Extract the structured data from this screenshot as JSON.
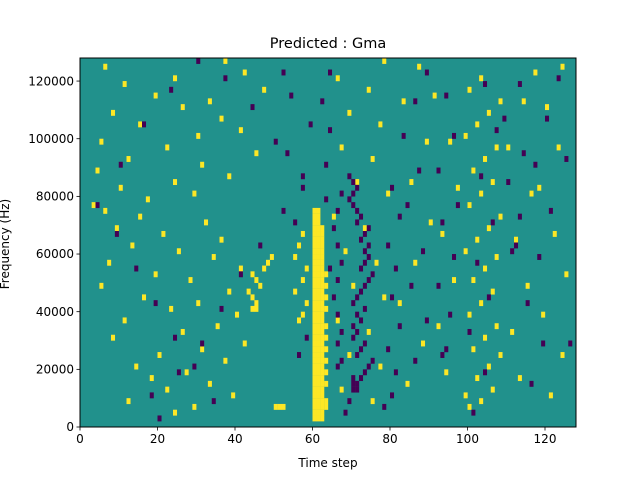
{
  "chart_data": {
    "type": "heatmap",
    "title": "Predicted : Gma",
    "xlabel": "Time step",
    "ylabel": "Frequency (Hz)",
    "xlim": [
      0,
      128
    ],
    "ylim": [
      0,
      128000
    ],
    "x_ticks": [
      0,
      20,
      40,
      60,
      80,
      100,
      120
    ],
    "y_ticks": [
      0,
      20000,
      40000,
      60000,
      80000,
      100000,
      120000
    ],
    "y_tick_labels": [
      "0",
      "20000",
      "40000",
      "60000",
      "80000",
      "100000",
      "120000"
    ],
    "grid": false,
    "legend": "none",
    "n_time_steps": 128,
    "n_frequency_bins": 64,
    "frequency_bin_width_hz": 2000,
    "levels": {
      "background": 0,
      "high": 1,
      "low": -1
    },
    "colors": {
      "background": "#21918c",
      "high": "#fde725",
      "low": "#440154"
    },
    "high_cells": [
      [
        60,
        1
      ],
      [
        61,
        1
      ],
      [
        62,
        1
      ],
      [
        60,
        2
      ],
      [
        61,
        2
      ],
      [
        62,
        2
      ],
      [
        50,
        3
      ],
      [
        51,
        3
      ],
      [
        52,
        3
      ],
      [
        60,
        3
      ],
      [
        61,
        3
      ],
      [
        62,
        3
      ],
      [
        63,
        3
      ],
      [
        60,
        4
      ],
      [
        61,
        4
      ],
      [
        62,
        4
      ],
      [
        63,
        4
      ],
      [
        60,
        5
      ],
      [
        61,
        5
      ],
      [
        62,
        5
      ],
      [
        60,
        6
      ],
      [
        61,
        6
      ],
      [
        62,
        6
      ],
      [
        60,
        7
      ],
      [
        61,
        7
      ],
      [
        62,
        7
      ],
      [
        63,
        7
      ],
      [
        60,
        8
      ],
      [
        61,
        8
      ],
      [
        62,
        8
      ],
      [
        60,
        9
      ],
      [
        61,
        9
      ],
      [
        62,
        9
      ],
      [
        63,
        9
      ],
      [
        60,
        10
      ],
      [
        61,
        10
      ],
      [
        62,
        10
      ],
      [
        60,
        11
      ],
      [
        61,
        11
      ],
      [
        62,
        11
      ],
      [
        63,
        11
      ],
      [
        60,
        12
      ],
      [
        61,
        12
      ],
      [
        62,
        12
      ],
      [
        60,
        13
      ],
      [
        61,
        13
      ],
      [
        62,
        13
      ],
      [
        63,
        13
      ],
      [
        60,
        14
      ],
      [
        61,
        14
      ],
      [
        62,
        14
      ],
      [
        60,
        15
      ],
      [
        61,
        15
      ],
      [
        62,
        15
      ],
      [
        63,
        15
      ],
      [
        60,
        16
      ],
      [
        61,
        16
      ],
      [
        62,
        16
      ],
      [
        60,
        17
      ],
      [
        61,
        17
      ],
      [
        62,
        17
      ],
      [
        63,
        17
      ],
      [
        60,
        18
      ],
      [
        61,
        18
      ],
      [
        62,
        18
      ],
      [
        60,
        19
      ],
      [
        61,
        19
      ],
      [
        62,
        19
      ],
      [
        60,
        20
      ],
      [
        61,
        20
      ],
      [
        62,
        20
      ],
      [
        63,
        20
      ],
      [
        60,
        21
      ],
      [
        61,
        21
      ],
      [
        62,
        21
      ],
      [
        60,
        22
      ],
      [
        61,
        22
      ],
      [
        62,
        22
      ],
      [
        63,
        22
      ],
      [
        60,
        23
      ],
      [
        61,
        23
      ],
      [
        62,
        23
      ],
      [
        60,
        24
      ],
      [
        61,
        24
      ],
      [
        62,
        24
      ],
      [
        63,
        24
      ],
      [
        60,
        25
      ],
      [
        61,
        25
      ],
      [
        62,
        25
      ],
      [
        60,
        26
      ],
      [
        61,
        26
      ],
      [
        62,
        26
      ],
      [
        63,
        26
      ],
      [
        60,
        27
      ],
      [
        61,
        27
      ],
      [
        62,
        27
      ],
      [
        60,
        28
      ],
      [
        61,
        28
      ],
      [
        62,
        28
      ],
      [
        60,
        29
      ],
      [
        61,
        29
      ],
      [
        62,
        29
      ],
      [
        60,
        30
      ],
      [
        61,
        30
      ],
      [
        62,
        30
      ],
      [
        60,
        31
      ],
      [
        61,
        31
      ],
      [
        62,
        31
      ],
      [
        60,
        32
      ],
      [
        61,
        32
      ],
      [
        62,
        32
      ],
      [
        60,
        33
      ],
      [
        61,
        33
      ],
      [
        62,
        33
      ],
      [
        60,
        34
      ],
      [
        61,
        34
      ],
      [
        62,
        34
      ],
      [
        60,
        35
      ],
      [
        61,
        35
      ],
      [
        60,
        36
      ],
      [
        61,
        36
      ],
      [
        60,
        37
      ],
      [
        61,
        37
      ],
      [
        44,
        20
      ],
      [
        45,
        20
      ],
      [
        45,
        21
      ],
      [
        44,
        22
      ],
      [
        43,
        23
      ],
      [
        46,
        24
      ],
      [
        45,
        25
      ],
      [
        44,
        26
      ],
      [
        47,
        27
      ],
      [
        48,
        28
      ],
      [
        49,
        29
      ],
      [
        56,
        18
      ],
      [
        57,
        19
      ],
      [
        58,
        21
      ],
      [
        55,
        23
      ],
      [
        57,
        25
      ],
      [
        58,
        27
      ],
      [
        55,
        29
      ],
      [
        56,
        31
      ],
      [
        57,
        33
      ],
      [
        24,
        2
      ],
      [
        29,
        3
      ],
      [
        12,
        4
      ],
      [
        39,
        5
      ],
      [
        22,
        6
      ],
      [
        33,
        7
      ],
      [
        18,
        8
      ],
      [
        27,
        9
      ],
      [
        14,
        10
      ],
      [
        37,
        11
      ],
      [
        20,
        12
      ],
      [
        31,
        13
      ],
      [
        42,
        14
      ],
      [
        8,
        15
      ],
      [
        26,
        16
      ],
      [
        35,
        17
      ],
      [
        11,
        18
      ],
      [
        40,
        19
      ],
      [
        23,
        20
      ],
      [
        30,
        21
      ],
      [
        16,
        22
      ],
      [
        38,
        23
      ],
      [
        5,
        24
      ],
      [
        28,
        25
      ],
      [
        19,
        26
      ],
      [
        41,
        27
      ],
      [
        7,
        28
      ],
      [
        34,
        29
      ],
      [
        25,
        30
      ],
      [
        13,
        31
      ],
      [
        36,
        32
      ],
      [
        21,
        33
      ],
      [
        9,
        34
      ],
      [
        32,
        35
      ],
      [
        15,
        36
      ],
      [
        6,
        37
      ],
      [
        3,
        38
      ],
      [
        17,
        39
      ],
      [
        29,
        40
      ],
      [
        10,
        41
      ],
      [
        24,
        42
      ],
      [
        38,
        43
      ],
      [
        4,
        44
      ],
      [
        31,
        45
      ],
      [
        12,
        46
      ],
      [
        45,
        47
      ],
      [
        22,
        48
      ],
      [
        5,
        49
      ],
      [
        30,
        50
      ],
      [
        41,
        51
      ],
      [
        15,
        52
      ],
      [
        36,
        53
      ],
      [
        8,
        54
      ],
      [
        26,
        55
      ],
      [
        33,
        56
      ],
      [
        19,
        57
      ],
      [
        47,
        58
      ],
      [
        11,
        59
      ],
      [
        24,
        60
      ],
      [
        42,
        61
      ],
      [
        6,
        62
      ],
      [
        37,
        63
      ],
      [
        100,
        3
      ],
      [
        103,
        4
      ],
      [
        99,
        5
      ],
      [
        106,
        6
      ],
      [
        102,
        8
      ],
      [
        105,
        10
      ],
      [
        108,
        12
      ],
      [
        101,
        13
      ],
      [
        104,
        15
      ],
      [
        107,
        17
      ],
      [
        100,
        19
      ],
      [
        103,
        21
      ],
      [
        106,
        23
      ],
      [
        101,
        25
      ],
      [
        104,
        27
      ],
      [
        107,
        29
      ],
      [
        99,
        30
      ],
      [
        102,
        32
      ],
      [
        105,
        34
      ],
      [
        108,
        36
      ],
      [
        100,
        38
      ],
      [
        103,
        40
      ],
      [
        106,
        42
      ],
      [
        101,
        44
      ],
      [
        104,
        46
      ],
      [
        107,
        48
      ],
      [
        99,
        50
      ],
      [
        102,
        52
      ],
      [
        105,
        54
      ],
      [
        108,
        56
      ],
      [
        100,
        58
      ],
      [
        103,
        60
      ],
      [
        121,
        5
      ],
      [
        124,
        12
      ],
      [
        119,
        19
      ],
      [
        125,
        26
      ],
      [
        122,
        33
      ],
      [
        118,
        41
      ],
      [
        123,
        48
      ],
      [
        120,
        55
      ],
      [
        124,
        62
      ],
      [
        67,
        6
      ],
      [
        69,
        12
      ],
      [
        66,
        18
      ],
      [
        70,
        24
      ],
      [
        68,
        30
      ],
      [
        65,
        36
      ],
      [
        71,
        42
      ],
      [
        67,
        48
      ],
      [
        69,
        54
      ],
      [
        66,
        60
      ],
      [
        75,
        4
      ],
      [
        77,
        10
      ],
      [
        74,
        16
      ],
      [
        78,
        22
      ],
      [
        76,
        28
      ],
      [
        73,
        34
      ],
      [
        79,
        40
      ],
      [
        75,
        46
      ],
      [
        77,
        52
      ],
      [
        74,
        58
      ],
      [
        78,
        63
      ],
      [
        84,
        7
      ],
      [
        88,
        14
      ],
      [
        82,
        21
      ],
      [
        86,
        28
      ],
      [
        90,
        35
      ],
      [
        85,
        42
      ],
      [
        89,
        49
      ],
      [
        83,
        56
      ],
      [
        87,
        62
      ],
      [
        94,
        9
      ],
      [
        92,
        17
      ],
      [
        96,
        25
      ],
      [
        93,
        33
      ],
      [
        97,
        41
      ],
      [
        95,
        49
      ],
      [
        91,
        57
      ],
      [
        113,
        8
      ],
      [
        111,
        16
      ],
      [
        115,
        24
      ],
      [
        112,
        32
      ],
      [
        116,
        40
      ],
      [
        110,
        48
      ],
      [
        114,
        56
      ],
      [
        117,
        61
      ]
    ],
    "low_cells": [
      [
        70,
        6
      ],
      [
        70,
        7
      ],
      [
        70,
        8
      ],
      [
        71,
        6
      ],
      [
        71,
        7
      ],
      [
        72,
        8
      ],
      [
        73,
        9
      ],
      [
        74,
        10
      ],
      [
        75,
        11
      ],
      [
        71,
        12
      ],
      [
        72,
        13
      ],
      [
        73,
        14
      ],
      [
        70,
        15
      ],
      [
        71,
        16
      ],
      [
        70,
        17
      ],
      [
        72,
        18
      ],
      [
        71,
        19
      ],
      [
        73,
        20
      ],
      [
        70,
        21
      ],
      [
        71,
        22
      ],
      [
        72,
        23
      ],
      [
        73,
        24
      ],
      [
        74,
        25
      ],
      [
        75,
        26
      ],
      [
        72,
        27
      ],
      [
        73,
        28
      ],
      [
        74,
        29
      ],
      [
        73,
        30
      ],
      [
        74,
        31
      ],
      [
        72,
        32
      ],
      [
        73,
        33
      ],
      [
        74,
        34
      ],
      [
        71,
        35
      ],
      [
        72,
        36
      ],
      [
        71,
        37
      ],
      [
        70,
        38
      ],
      [
        69,
        39
      ],
      [
        70,
        40
      ],
      [
        71,
        41
      ],
      [
        70,
        42
      ],
      [
        69,
        43
      ],
      [
        66,
        10
      ],
      [
        67,
        11
      ],
      [
        66,
        14
      ],
      [
        67,
        16
      ],
      [
        66,
        19
      ],
      [
        65,
        22
      ],
      [
        66,
        25
      ],
      [
        67,
        28
      ],
      [
        66,
        31
      ],
      [
        65,
        34
      ],
      [
        66,
        37
      ],
      [
        67,
        40
      ],
      [
        68,
        2
      ],
      [
        69,
        4
      ],
      [
        78,
        3
      ],
      [
        80,
        5
      ],
      [
        81,
        9
      ],
      [
        79,
        13
      ],
      [
        82,
        17
      ],
      [
        80,
        22
      ],
      [
        81,
        27
      ],
      [
        79,
        31
      ],
      [
        82,
        36
      ],
      [
        80,
        41
      ],
      [
        93,
        12
      ],
      [
        94,
        13
      ],
      [
        95,
        19
      ],
      [
        92,
        24
      ],
      [
        96,
        29
      ],
      [
        93,
        35
      ],
      [
        97,
        38
      ],
      [
        92,
        44
      ],
      [
        96,
        50
      ],
      [
        94,
        57
      ],
      [
        111,
        30
      ],
      [
        112,
        31
      ],
      [
        113,
        36
      ],
      [
        110,
        42
      ],
      [
        114,
        47
      ],
      [
        109,
        53
      ],
      [
        113,
        59
      ],
      [
        20,
        1
      ],
      [
        18,
        5
      ],
      [
        25,
        9
      ],
      [
        31,
        14
      ],
      [
        36,
        20
      ],
      [
        41,
        26
      ],
      [
        46,
        31
      ],
      [
        52,
        37
      ],
      [
        57,
        43
      ],
      [
        50,
        49
      ],
      [
        44,
        55
      ],
      [
        37,
        60
      ],
      [
        30,
        63
      ],
      [
        23,
        58
      ],
      [
        16,
        52
      ],
      [
        10,
        45
      ],
      [
        4,
        38
      ],
      [
        9,
        33
      ],
      [
        14,
        27
      ],
      [
        19,
        21
      ],
      [
        24,
        15
      ],
      [
        29,
        10
      ],
      [
        34,
        4
      ],
      [
        86,
        11
      ],
      [
        89,
        18
      ],
      [
        85,
        24
      ],
      [
        88,
        30
      ],
      [
        84,
        38
      ],
      [
        87,
        44
      ],
      [
        83,
        50
      ],
      [
        86,
        56
      ],
      [
        89,
        61
      ],
      [
        101,
        2
      ],
      [
        104,
        9
      ],
      [
        100,
        16
      ],
      [
        105,
        22
      ],
      [
        102,
        28
      ],
      [
        106,
        35
      ],
      [
        103,
        43
      ],
      [
        107,
        51
      ],
      [
        104,
        59
      ],
      [
        116,
        7
      ],
      [
        119,
        14
      ],
      [
        115,
        21
      ],
      [
        118,
        29
      ],
      [
        121,
        37
      ],
      [
        117,
        45
      ],
      [
        120,
        53
      ],
      [
        123,
        60
      ],
      [
        125,
        46
      ],
      [
        126,
        14
      ],
      [
        56,
        12
      ],
      [
        58,
        15
      ],
      [
        55,
        35
      ],
      [
        57,
        41
      ],
      [
        53,
        47
      ],
      [
        59,
        52
      ],
      [
        54,
        57
      ],
      [
        52,
        61
      ],
      [
        63,
        45
      ],
      [
        64,
        51
      ],
      [
        62,
        56
      ],
      [
        64,
        61
      ],
      [
        63,
        39
      ],
      [
        64,
        27
      ]
    ]
  }
}
